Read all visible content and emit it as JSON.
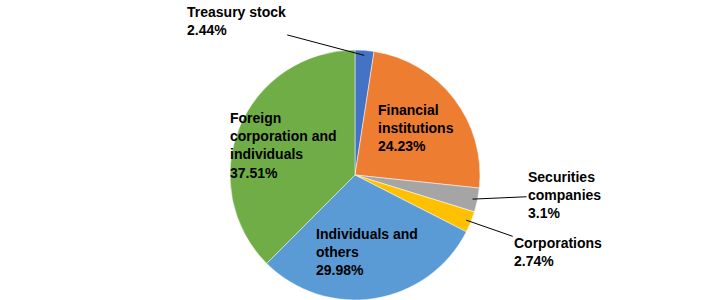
{
  "chart_data": {
    "type": "pie",
    "categories": [
      "Treasury stock",
      "Financial institutions",
      "Securities companies",
      "Corporations",
      "Individuals and others",
      "Foreign corporation and individuals"
    ],
    "values": [
      2.44,
      24.23,
      3.1,
      2.74,
      29.98,
      37.51
    ],
    "value_labels": [
      "2.44%",
      "24.23%",
      "3.1%",
      "2.74%",
      "29.98%",
      "37.51%"
    ],
    "colors": [
      "#4472c4",
      "#ed7d31",
      "#a5a5a5",
      "#ffc000",
      "#5b9bd5",
      "#70ad47"
    ],
    "data_labels": true
  }
}
